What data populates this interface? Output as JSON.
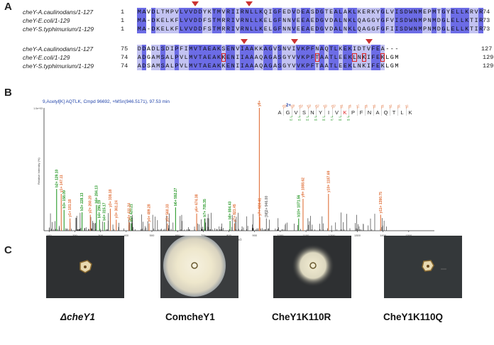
{
  "panels": {
    "a": "A",
    "b": "B",
    "c": "C"
  },
  "alignment": {
    "block1": {
      "names": [
        "cheY-A.caulinodans/1-127",
        "cheY-E.coli/1-129",
        "cheY-S.typhimurium/1-129"
      ],
      "starts": [
        "1",
        "1",
        "1"
      ],
      "ends": [
        "74",
        "73",
        "73"
      ],
      "sequences": [
        "MAVDLTMPVLVVDDYKTMVRIIRNLLKQIGFEDVDEASDGTEALAKLKERKYGLVISDWNMEPMTGYELLKRVR",
        "MA-DKELKFLVVDDFSTMRRIVRNLLKELGFNNVEEAEDGVDALNKLQAGGYGFVISDWNMPNMDGLELLKTIR",
        "MA-DKELKFLVVDDFSTMRRIVRNLLKELGFNNVEEAEDGVDALNKLQAGGFGFIISDWNMPNMDGLELLKTIR"
      ]
    },
    "block2": {
      "names": [
        "cheY-A.caulinodans/1-127",
        "cheY-E.coli/1-129",
        "cheY-S.typhimurium/1-129"
      ],
      "starts": [
        "75",
        "74",
        "74"
      ],
      "ends": [
        "127",
        "129",
        "129"
      ],
      "sequences": [
        "DDADLSDIPFIMVTAEAKSENVIAAKKAGVSNVIVKPFNAQTLKEKIDTVFEA---",
        "ADGAMSALPVLMVTAEAKKENIIAAAQAGASGYVVKPFTAATLEEKLNKIFEKLGM",
        "ADSAMSALPVLMVTAEAKKENIIAAAQAGASGYVVKPFTAATLEEKLNKIFEKLGM"
      ]
    }
  },
  "spectrum": {
    "title": "9,Acetyl[K] AQTLK, Cmpd 96692, +MSn(946.5171), 97.53 min",
    "ylabel": "Relative Intensity (%)",
    "xlabel": "m/z",
    "top_label": "1.0e+03",
    "charge": "2+",
    "peptide": [
      "A",
      "G",
      "V",
      "S",
      "N",
      "Y",
      "I",
      "V",
      "K",
      "P",
      "F",
      "N",
      "A",
      "Q",
      "T",
      "L",
      "K"
    ],
    "y_labels": [
      "y16",
      "y15",
      "y14",
      "y13",
      "y12",
      "y11",
      "y10",
      "y9",
      "y8",
      "y7",
      "y6",
      "y5",
      "y4",
      "y3",
      "y2",
      "y1"
    ],
    "b_labels": [
      "b2",
      "b3",
      "b4",
      "b5",
      "b6",
      "b7",
      "b8",
      "b9"
    ],
    "x_ticks": [
      "100",
      "200",
      "300",
      "400",
      "500",
      "600",
      "700",
      "800",
      "900",
      "1000",
      "1100",
      "1200",
      "1300",
      "1400",
      "1500"
    ]
  },
  "chart_data": {
    "type": "bar",
    "title": "9,Acetyl[K] AQTLK, Cmpd 96692, +MSn(946.5171), 97.53 min",
    "xlabel": "m/z",
    "ylabel": "Relative Intensity (%)",
    "xlim": [
      80,
      1600
    ],
    "ylim": [
      0,
      100
    ],
    "series": [
      {
        "name": "b-ions",
        "color": "#2a9a2a",
        "peaks": [
          {
            "x": 129.1,
            "y": 34,
            "label": "b2+ 129.10"
          },
          {
            "x": 158.09,
            "y": 17,
            "label": "b3+ 158.09"
          },
          {
            "x": 228.13,
            "y": 15,
            "label": "b3+ 228.13"
          },
          {
            "x": 284.13,
            "y": 21,
            "label": "b6+ 284.13"
          },
          {
            "x": 296.19,
            "y": 9,
            "label": "b4+ 296.19"
          },
          {
            "x": 315.17,
            "y": 7,
            "label": "b4+ 315.17"
          },
          {
            "x": 420.21,
            "y": 6,
            "label": "b5+ 420.21"
          },
          {
            "x": 592.27,
            "y": 19,
            "label": "b6+ 592.27"
          },
          {
            "x": 705.35,
            "y": 10,
            "label": "b7+ 705.35"
          },
          {
            "x": 804.43,
            "y": 8,
            "label": "b8+ 804.43"
          },
          {
            "x": 1071.56,
            "y": 10,
            "label": "b10+ 1071.56"
          }
        ]
      },
      {
        "name": "y-ions",
        "color": "#e0703a",
        "peaks": [
          {
            "x": 147.11,
            "y": 30,
            "label": "y1+ 147.11"
          },
          {
            "x": 181.18,
            "y": 10,
            "label": "y1+ 181.18"
          },
          {
            "x": 260.2,
            "y": 13,
            "label": "y2+ 260.20"
          },
          {
            "x": 338.18,
            "y": 18,
            "label": "y3+ 338.18"
          },
          {
            "x": 361.24,
            "y": 9,
            "label": "y3+ 361.24"
          },
          {
            "x": 411.24,
            "y": 7,
            "label": "y4+ 411.24"
          },
          {
            "x": 489.28,
            "y": 6,
            "label": "y4+ 489.28"
          },
          {
            "x": 560.33,
            "y": 6,
            "label": "y5+ 560.33"
          },
          {
            "x": 674.38,
            "y": 14,
            "label": "y6+ 674.38"
          },
          {
            "x": 821.45,
            "y": 6,
            "label": "y7+ 821.45"
          },
          {
            "x": 920.41,
            "y": 11,
            "label": "y7+ 920.41"
          },
          {
            "x": 918.5,
            "y": 100,
            "label": "y8+ 918.50"
          },
          {
            "x": 1088.62,
            "y": 26,
            "label": "y9+ 1088.62"
          },
          {
            "x": 1187.69,
            "y": 30,
            "label": "y10+ 1187.69"
          },
          {
            "x": 1390.75,
            "y": 13,
            "label": "y11+ 1390.75"
          }
        ]
      },
      {
        "name": "other",
        "color": "#777777",
        "peaks": [
          {
            "x": 946.0,
            "y": 10,
            "label": "[M]2+ 946.00"
          }
        ]
      }
    ]
  },
  "plates": {
    "labels": [
      "ΔcheY1",
      "ComcheY1",
      "CheY1K110R",
      "CheY1K110Q"
    ]
  },
  "colors": {
    "identity_dark": "#6c6ce6",
    "identity_light": "#c3c3f2",
    "mod_box": "#dd2222",
    "marker": "#cc3333"
  }
}
